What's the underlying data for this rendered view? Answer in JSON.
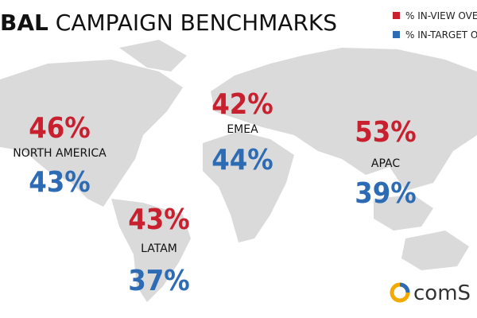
{
  "header": {
    "title_bold": "BAL",
    "title_rest": "CAMPAIGN BENCHMARKS"
  },
  "legend": [
    {
      "label": "% IN-VIEW OVE",
      "color": "#c8202f"
    },
    {
      "label": "% IN-TARGET OV",
      "color": "#2d6cb5"
    }
  ],
  "regions": [
    {
      "name": "NORTH AMERICA",
      "in_view": "46%",
      "in_target": "43%"
    },
    {
      "name": "EMEA",
      "in_view": "42%",
      "in_target": "44%"
    },
    {
      "name": "APAC",
      "in_view": "53%",
      "in_target": "39%"
    },
    {
      "name": "LATAM",
      "in_view": "43%",
      "in_target": "37%"
    }
  ],
  "logo": {
    "text": "comS"
  }
}
